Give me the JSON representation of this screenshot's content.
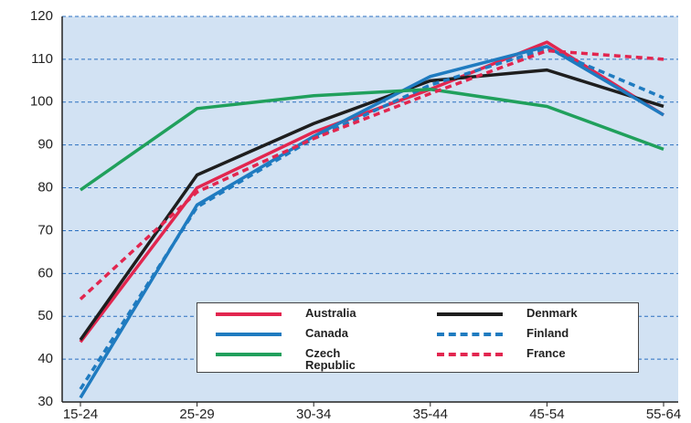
{
  "chart_data": {
    "type": "line",
    "categories": [
      "15-24",
      "25-29",
      "30-34",
      "35-44",
      "45-54",
      "55-64"
    ],
    "series": [
      {
        "name": "Australia",
        "color": "#e2264f",
        "line_style": "solid",
        "values": [
          44,
          80,
          93,
          103,
          114,
          97
        ]
      },
      {
        "name": "Denmark",
        "color": "#1e1e1e",
        "line_style": "solid",
        "values": [
          44.5,
          83,
          95,
          105,
          107.5,
          99
        ]
      },
      {
        "name": "Canada",
        "color": "#1f7bc0",
        "line_style": "solid",
        "values": [
          31,
          76,
          92,
          106,
          113,
          97
        ]
      },
      {
        "name": "Finland",
        "color": "#1f7bc0",
        "line_style": "dashed",
        "values": [
          33,
          75.5,
          91.5,
          104,
          112.5,
          101
        ]
      },
      {
        "name": "Czech Republic",
        "color": "#20a05c",
        "line_style": "solid",
        "values": [
          79.5,
          98.5,
          101.5,
          103,
          99,
          89
        ]
      },
      {
        "name": "France",
        "color": "#e2264f",
        "line_style": "dashed",
        "values": [
          54,
          79,
          91.5,
          102,
          112,
          110
        ]
      }
    ],
    "ylim": [
      30,
      120
    ],
    "yticks": [
      30,
      40,
      50,
      60,
      70,
      80,
      90,
      100,
      110,
      120
    ],
    "grid": true
  }
}
